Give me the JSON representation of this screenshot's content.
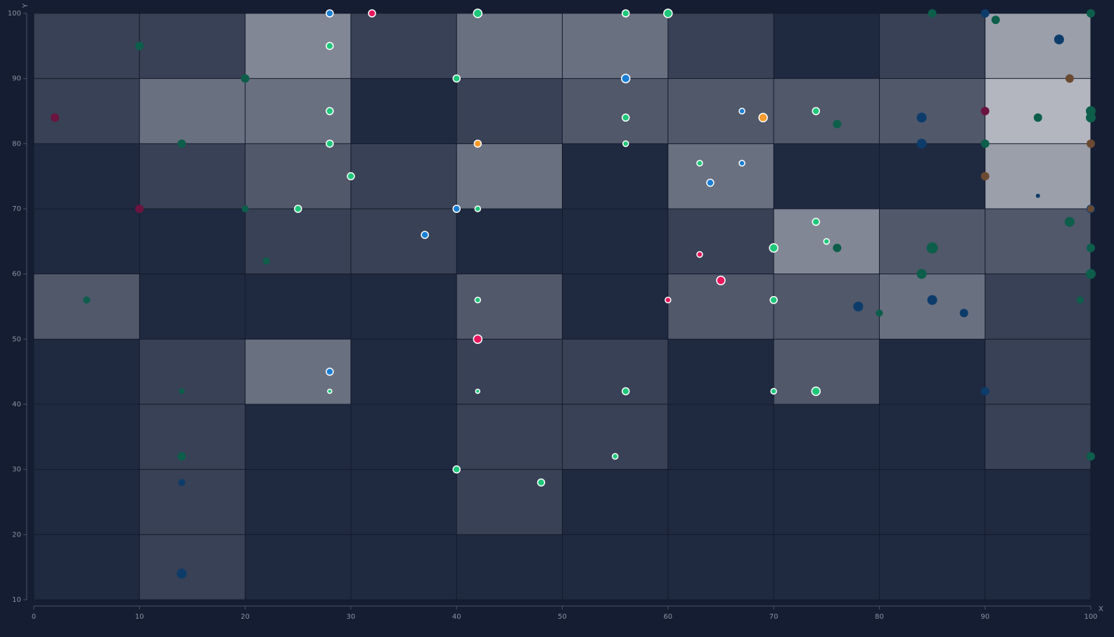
{
  "chart_data": {
    "type": "scatter",
    "x_label": "X",
    "y_label": "Y",
    "xlim": [
      0,
      100
    ],
    "ylim": [
      10,
      100
    ],
    "xticks": [
      0,
      10,
      20,
      30,
      40,
      50,
      60,
      70,
      80,
      90,
      100
    ],
    "yticks": [
      10,
      20,
      30,
      40,
      50,
      60,
      70,
      80,
      90,
      100
    ],
    "grid": true,
    "heatmap": {
      "xbins": [
        0,
        10,
        20,
        30,
        40,
        50,
        60,
        70,
        80,
        90,
        100
      ],
      "ybins": [
        10,
        20,
        30,
        40,
        50,
        60,
        70,
        80,
        90,
        100
      ],
      "values": [
        [
          0,
          1,
          0,
          0,
          0,
          0,
          0,
          0,
          0,
          0
        ],
        [
          0,
          1,
          0,
          0,
          1,
          0,
          0,
          0,
          0,
          0
        ],
        [
          0,
          1,
          0,
          0,
          1,
          1,
          0,
          0,
          0,
          1
        ],
        [
          0,
          1,
          3,
          0,
          1,
          1,
          0,
          2,
          0,
          1
        ],
        [
          2,
          0,
          0,
          0,
          2,
          0,
          2,
          2,
          3,
          1
        ],
        [
          0,
          0,
          1,
          1,
          0,
          0,
          1,
          4,
          2,
          2
        ],
        [
          0,
          1,
          2,
          1,
          3,
          0,
          3,
          0,
          0,
          5
        ],
        [
          1,
          3,
          3,
          0,
          1,
          2,
          2,
          2,
          2,
          6
        ],
        [
          1,
          1,
          4,
          1,
          3,
          3,
          1,
          0,
          1,
          5
        ]
      ],
      "colors": [
        "#1f2940",
        "#b3b6bf"
      ]
    },
    "series": [
      {
        "color": "#1fc77a",
        "outline": true,
        "x": [
          28,
          28,
          28,
          30,
          25,
          42,
          40,
          42,
          42,
          28,
          42,
          40,
          48,
          56,
          56,
          56,
          60,
          56,
          55,
          63,
          74,
          70,
          74,
          75,
          70,
          70,
          74
        ],
        "values": [
          95,
          85,
          80,
          75,
          70,
          100,
          90,
          70,
          56,
          42,
          42,
          30,
          28,
          100,
          84,
          80,
          100,
          42,
          32,
          77,
          85,
          64,
          68,
          65,
          56,
          42,
          42
        ],
        "sizes": [
          5,
          5,
          5,
          5,
          5,
          6,
          5,
          4,
          4,
          3,
          3,
          5,
          5,
          5,
          5,
          4,
          6,
          5,
          4,
          4,
          5,
          6,
          5,
          4,
          5,
          4,
          6
        ]
      },
      {
        "color": "#0d5e4b",
        "outline": false,
        "x": [
          10,
          20,
          14,
          20,
          22,
          5,
          14,
          14,
          76,
          76,
          80,
          85,
          91,
          90,
          95,
          100,
          100,
          98,
          85,
          84,
          100,
          100,
          99,
          100,
          100
        ],
        "values": [
          95,
          90,
          80,
          70,
          62,
          56,
          42,
          32,
          83,
          64,
          54,
          100,
          99,
          80,
          84,
          85,
          84,
          68,
          64,
          60,
          64,
          60,
          56,
          32,
          100
        ],
        "sizes": [
          6,
          6,
          6,
          5,
          5,
          5,
          4,
          6,
          6,
          6,
          5,
          6,
          6,
          6,
          6,
          7,
          7,
          7,
          8,
          7,
          6,
          7,
          5,
          6,
          6
        ]
      },
      {
        "color": "#1a7fd4",
        "outline": true,
        "x": [
          28,
          40,
          37,
          28,
          56,
          67,
          67,
          64
        ],
        "values": [
          100,
          70,
          66,
          45,
          90,
          85,
          77,
          74
        ],
        "sizes": [
          5,
          5,
          5,
          5,
          6,
          4,
          4,
          5
        ]
      },
      {
        "color": "#0d3c6a",
        "outline": false,
        "x": [
          14,
          14,
          90,
          97,
          84,
          84,
          78,
          85,
          88,
          90,
          95,
          100
        ],
        "values": [
          28,
          14,
          100,
          96,
          84,
          80,
          55,
          56,
          54,
          42,
          72,
          70
        ],
        "sizes": [
          5,
          7,
          6,
          7,
          7,
          7,
          7,
          7,
          6,
          6,
          3,
          6
        ]
      },
      {
        "color": "#e8175d",
        "outline": true,
        "x": [
          32,
          42,
          63,
          65,
          60
        ],
        "values": [
          100,
          50,
          63,
          59,
          56
        ],
        "sizes": [
          5,
          6,
          4,
          6,
          4
        ]
      },
      {
        "color": "#6b1440",
        "outline": false,
        "x": [
          2,
          10,
          90
        ],
        "values": [
          84,
          70,
          85
        ],
        "sizes": [
          6,
          6,
          6
        ]
      },
      {
        "color": "#f59a2c",
        "outline": true,
        "x": [
          42,
          69
        ],
        "values": [
          80,
          84
        ],
        "sizes": [
          5,
          6
        ]
      },
      {
        "color": "#6b4a32",
        "outline": false,
        "x": [
          98,
          100,
          90,
          100
        ],
        "values": [
          90,
          80,
          75,
          70
        ],
        "sizes": [
          6,
          6,
          6,
          5
        ]
      }
    ]
  }
}
